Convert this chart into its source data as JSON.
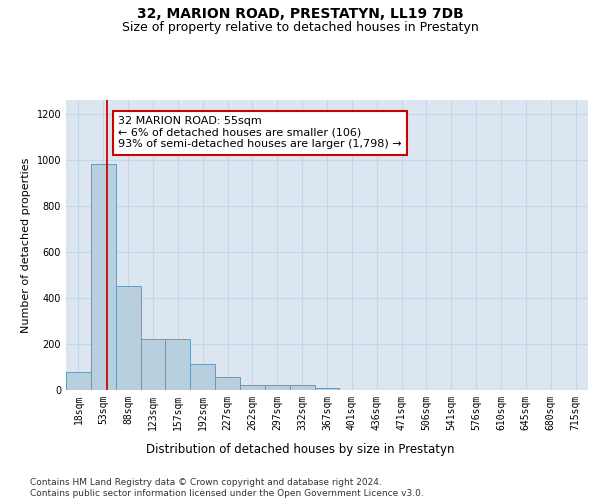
{
  "title": "32, MARION ROAD, PRESTATYN, LL19 7DB",
  "subtitle": "Size of property relative to detached houses in Prestatyn",
  "xlabel": "Distribution of detached houses by size in Prestatyn",
  "ylabel": "Number of detached properties",
  "bin_labels": [
    "18sqm",
    "53sqm",
    "88sqm",
    "123sqm",
    "157sqm",
    "192sqm",
    "227sqm",
    "262sqm",
    "297sqm",
    "332sqm",
    "367sqm",
    "401sqm",
    "436sqm",
    "471sqm",
    "506sqm",
    "541sqm",
    "576sqm",
    "610sqm",
    "645sqm",
    "680sqm",
    "715sqm"
  ],
  "bar_heights": [
    80,
    980,
    450,
    220,
    220,
    115,
    55,
    20,
    20,
    20,
    10,
    0,
    0,
    0,
    0,
    0,
    0,
    0,
    0,
    0,
    0
  ],
  "bar_color": "#b8cfe0",
  "bar_edge_color": "#6699bb",
  "vline_x_index": 1.15,
  "annotation_text": "32 MARION ROAD: 55sqm\n← 6% of detached houses are smaller (106)\n93% of semi-detached houses are larger (1,798) →",
  "annotation_box_color": "#ffffff",
  "annotation_box_edge_color": "#cc0000",
  "vline_color": "#cc0000",
  "ylim": [
    0,
    1260
  ],
  "yticks": [
    0,
    200,
    400,
    600,
    800,
    1000,
    1200
  ],
  "grid_color": "#c8d4e8",
  "background_color": "#dce6f0",
  "footer_text": "Contains HM Land Registry data © Crown copyright and database right 2024.\nContains public sector information licensed under the Open Government Licence v3.0.",
  "title_fontsize": 10,
  "subtitle_fontsize": 9,
  "xlabel_fontsize": 8.5,
  "ylabel_fontsize": 8,
  "tick_fontsize": 7,
  "annotation_fontsize": 8,
  "footer_fontsize": 6.5
}
